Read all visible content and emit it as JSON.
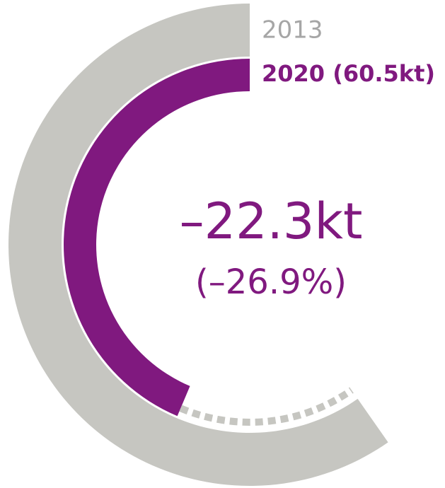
{
  "chart_data": {
    "type": "radial-bar",
    "series": [
      {
        "name": "2013",
        "color": "#c6c6c1",
        "values": [
          82.8
        ]
      },
      {
        "name": "2020",
        "color": "#80197f",
        "values": [
          60.5
        ],
        "value_labels": [
          "(60.5kt)"
        ]
      }
    ],
    "annotations": [
      "–22.3kt",
      "(–26.9%)"
    ]
  }
}
